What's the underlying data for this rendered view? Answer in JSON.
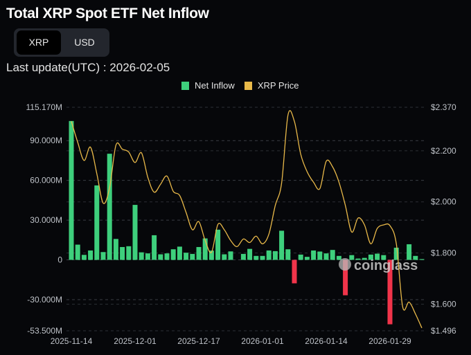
{
  "header": {
    "title": "Total XRP Spot ETF Net Inflow",
    "last_update": "Last update(UTC) : 2026-02-05"
  },
  "toggle": {
    "options": [
      "XRP",
      "USD"
    ],
    "selected": "XRP"
  },
  "watermark": "coinglass",
  "colors": {
    "inflow_pos": "#3ecf7c",
    "inflow_neg": "#f0344a",
    "price": "#e9b949"
  },
  "chart_data": {
    "type": "bar",
    "title": "Total XRP Spot ETF Net Inflow",
    "legend": [
      "Net Inflow",
      "XRP Price"
    ],
    "legend_position": "top-center",
    "x_tick_labels": [
      {
        "index": 0,
        "label": "2025-11-14"
      },
      {
        "index": 10,
        "label": "2025-12-01"
      },
      {
        "index": 20,
        "label": "2025-12-17"
      },
      {
        "index": 30,
        "label": "2026-01-01"
      },
      {
        "index": 40,
        "label": "2026-01-14"
      },
      {
        "index": 50,
        "label": "2026-01-29"
      }
    ],
    "y_left": {
      "unit": "M",
      "range": [
        -53.5,
        115.17
      ],
      "ticks": [
        115.17,
        90,
        60,
        30,
        0,
        -30,
        -53.5
      ],
      "tick_labels": [
        "115.170M",
        "90.000M",
        "60.000M",
        "30.000M",
        "0",
        "-30.000M",
        "-53.500M"
      ]
    },
    "y_right": {
      "range": [
        1.496,
        2.37
      ],
      "ticks": [
        2.37,
        2.2,
        2.0,
        1.8,
        1.6,
        1.496
      ],
      "tick_labels": [
        "$2.370",
        "$2.200",
        "$2.000",
        "$1.800",
        "$1.600",
        "$1.496"
      ]
    },
    "series": [
      {
        "name": "Net Inflow",
        "type": "bar",
        "values": [
          104.8,
          11.5,
          3.8,
          7.1,
          56.2,
          5.9,
          80.1,
          15.8,
          9.7,
          10.3,
          41.5,
          5.7,
          4.9,
          18.6,
          4.2,
          4.9,
          8.0,
          10.0,
          5.4,
          4.5,
          9.7,
          16.2,
          7.0,
          22.8,
          4.2,
          6.4,
          0,
          4.5,
          8.3,
          3.0,
          3.0,
          7.1,
          6.6,
          22.0,
          8.0,
          -17.7,
          4.0,
          2.3,
          7.1,
          6.3,
          4.9,
          7.5,
          3.0,
          -26.7,
          3.6,
          1.0,
          1.5,
          4.0,
          4.7,
          3.6,
          -48.6,
          9.2,
          0,
          11.8,
          3.0,
          0.6
        ]
      },
      {
        "name": "XRP Price",
        "type": "line",
        "values": [
          2.315,
          2.233,
          2.162,
          2.214,
          2.11,
          1.995,
          2.055,
          2.222,
          2.206,
          2.195,
          2.154,
          2.192,
          2.096,
          2.038,
          2.069,
          2.101,
          2.041,
          2.025,
          1.959,
          1.891,
          1.923,
          1.849,
          1.803,
          1.912,
          1.891,
          1.849,
          1.825,
          1.855,
          1.841,
          1.866,
          1.836,
          1.874,
          1.986,
          2.074,
          2.34,
          2.315,
          2.186,
          2.118,
          2.077,
          2.052,
          2.159,
          2.137,
          2.077,
          1.986,
          1.882,
          1.937,
          1.91,
          1.836,
          1.896,
          1.91,
          1.907,
          1.836,
          1.589,
          1.608,
          1.562,
          1.507
        ]
      }
    ]
  }
}
